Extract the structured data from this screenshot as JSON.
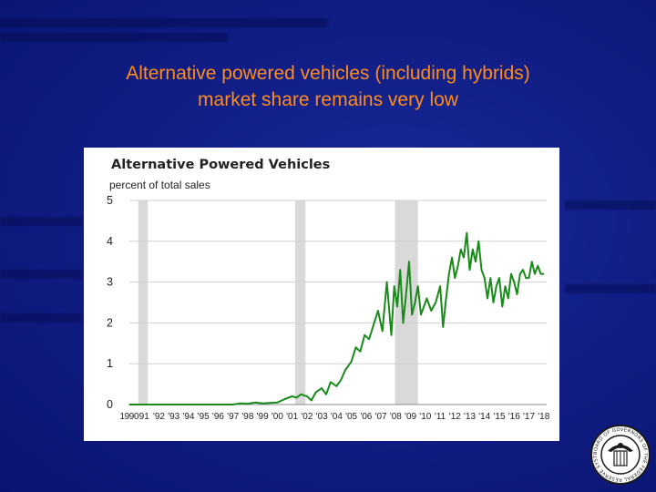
{
  "slide": {
    "title_line1": "Alternative powered vehicles (including hybrids)",
    "title_line2": "market share remains very low"
  },
  "colors": {
    "background": "#111e86",
    "title": "#ff8c1a",
    "series": "#1a8a1a",
    "recession": "#d9d9d9"
  },
  "chart_data": {
    "type": "line",
    "title": "Alternative Powered Vehicles",
    "ylabel": "percent of total sales",
    "xlabel": "",
    "ylim": [
      0,
      5
    ],
    "xlim": [
      1990,
      2018.2
    ],
    "yticks": [
      "0",
      "1",
      "2",
      "3",
      "4",
      "5"
    ],
    "xticks": [
      "1990",
      "91",
      "'92",
      "'93",
      "'94",
      "'95",
      "'96",
      "'97",
      "'98",
      "'99",
      "'00",
      "'01",
      "'02",
      "'03",
      "'04",
      "'05",
      "'06",
      "'07",
      "'08",
      "'09",
      "'10",
      "'11",
      "'12",
      "'13",
      "'14",
      "'15",
      "'16",
      "'17",
      "'18"
    ],
    "grid": true,
    "recessions": [
      [
        1990.6,
        1991.25
      ],
      [
        2001.2,
        2001.9
      ],
      [
        2007.95,
        2009.5
      ]
    ],
    "series": [
      {
        "x": [
          1990,
          1997.0,
          1997.5,
          1998.0,
          1998.5,
          1999.0,
          1999.5,
          2000.0,
          2000.3,
          2000.6,
          2001.0,
          2001.3,
          2001.6,
          2002.0,
          2002.3,
          2002.6,
          2003.0,
          2003.3,
          2003.6,
          2004.0,
          2004.3,
          2004.6,
          2005.0,
          2005.3,
          2005.6,
          2005.9,
          2006.2,
          2006.5,
          2006.8,
          2007.1,
          2007.4,
          2007.7,
          2007.9,
          2008.1,
          2008.3,
          2008.5,
          2008.7,
          2008.9,
          2009.1,
          2009.3,
          2009.5,
          2009.7,
          2009.9,
          2010.1,
          2010.4,
          2010.7,
          2011.0,
          2011.2,
          2011.4,
          2011.6,
          2011.8,
          2012.0,
          2012.2,
          2012.4,
          2012.6,
          2012.8,
          2013.0,
          2013.2,
          2013.4,
          2013.6,
          2013.8,
          2014.0,
          2014.2,
          2014.4,
          2014.6,
          2014.8,
          2015.0,
          2015.2,
          2015.4,
          2015.6,
          2015.8,
          2016.0,
          2016.2,
          2016.4,
          2016.6,
          2016.8,
          2017.0,
          2017.2,
          2017.4,
          2017.6,
          2017.8,
          2018.0
        ],
        "values": [
          0.0,
          0.0,
          0.03,
          0.02,
          0.05,
          0.03,
          0.04,
          0.05,
          0.1,
          0.15,
          0.2,
          0.17,
          0.25,
          0.2,
          0.1,
          0.3,
          0.4,
          0.25,
          0.55,
          0.45,
          0.6,
          0.85,
          1.05,
          1.4,
          1.3,
          1.7,
          1.6,
          1.95,
          2.3,
          1.8,
          3.0,
          1.7,
          2.9,
          2.4,
          3.3,
          2.0,
          2.7,
          3.5,
          2.2,
          2.5,
          2.9,
          2.2,
          2.4,
          2.6,
          2.3,
          2.5,
          2.9,
          1.9,
          2.6,
          3.2,
          3.6,
          3.1,
          3.4,
          3.8,
          3.6,
          4.2,
          3.3,
          3.8,
          3.5,
          4.0,
          3.3,
          3.1,
          2.6,
          3.1,
          2.5,
          2.9,
          3.1,
          2.4,
          2.9,
          2.6,
          3.2,
          3.0,
          2.7,
          3.2,
          3.3,
          3.1,
          3.1,
          3.5,
          3.2,
          3.4,
          3.2,
          3.2
        ]
      }
    ]
  },
  "seal": {
    "text": "BOARD OF GOVERNORS OF THE FEDERAL RESERVE SYSTEM"
  }
}
